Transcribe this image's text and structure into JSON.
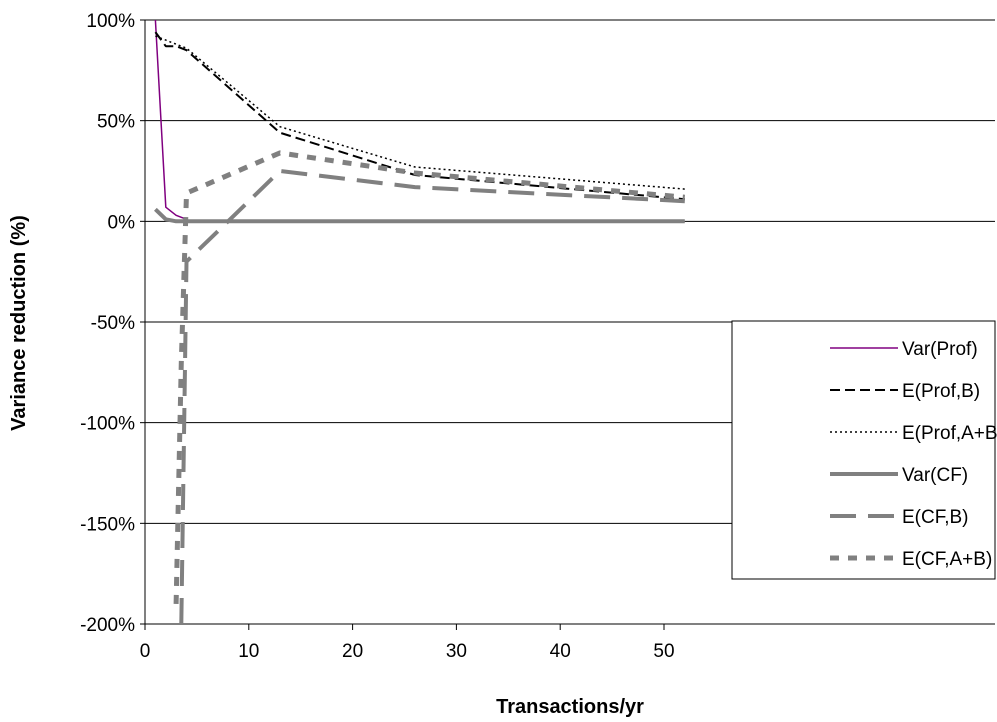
{
  "chart_data": {
    "type": "line",
    "title": "",
    "xlabel": "Transactions/yr",
    "ylabel": "Variance reduction (%)",
    "xlim": [
      0,
      55
    ],
    "ylim": [
      -200,
      100
    ],
    "x_ticks": [
      0,
      10,
      20,
      30,
      40,
      50
    ],
    "y_ticks": [
      100,
      50,
      0,
      -50,
      -100,
      -150,
      -200
    ],
    "y_tick_labels": [
      "100%",
      "50%",
      "0%",
      "-50%",
      "-100%",
      "-150%",
      "-200%"
    ],
    "grid": "horizontal",
    "legend_position": "bottom-right",
    "series": [
      {
        "name": "Var(Prof)",
        "color": "#800080",
        "style": "solid-thin",
        "points": [
          [
            1,
            100
          ],
          [
            2,
            7
          ],
          [
            3,
            3
          ],
          [
            4,
            1
          ]
        ]
      },
      {
        "name": "E(Prof,B)",
        "color": "#000000",
        "style": "dashed",
        "points": [
          [
            1,
            94
          ],
          [
            2,
            87
          ],
          [
            3,
            87
          ],
          [
            4,
            85
          ],
          [
            13,
            44
          ],
          [
            26,
            23
          ],
          [
            52,
            11
          ]
        ]
      },
      {
        "name": "E(Prof,A+B)",
        "color": "#000000",
        "style": "dotted",
        "points": [
          [
            1,
            92
          ],
          [
            2,
            90
          ],
          [
            3,
            88
          ],
          [
            4,
            86
          ],
          [
            13,
            47
          ],
          [
            26,
            27
          ],
          [
            52,
            16
          ]
        ]
      },
      {
        "name": "Var(CF)",
        "color": "#808080",
        "style": "solid-thick",
        "points": [
          [
            1,
            6
          ],
          [
            2,
            1
          ],
          [
            3,
            0
          ],
          [
            4,
            0
          ],
          [
            13,
            0
          ],
          [
            26,
            0
          ],
          [
            52,
            0
          ]
        ]
      },
      {
        "name": "E(CF,B)",
        "color": "#808080",
        "style": "long-dash-thick",
        "points": [
          [
            3.5,
            -200
          ],
          [
            4,
            -20
          ],
          [
            13,
            25
          ],
          [
            26,
            17
          ],
          [
            52,
            10
          ]
        ]
      },
      {
        "name": "E(CF,A+B)",
        "color": "#808080",
        "style": "short-dash-thick",
        "points": [
          [
            3,
            -190
          ],
          [
            3.5,
            -70
          ],
          [
            4,
            14
          ],
          [
            13,
            34
          ],
          [
            26,
            24
          ],
          [
            52,
            12
          ]
        ]
      }
    ]
  }
}
